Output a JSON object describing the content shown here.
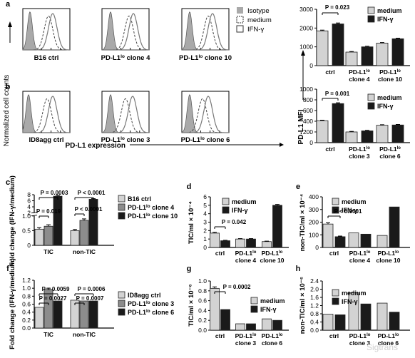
{
  "flow": {
    "y_label": "Normalized cell counts",
    "x_label": "PD-L1 expression",
    "legend": [
      "Isotype",
      "medium",
      "IFN-γ"
    ],
    "row_a_labels": [
      "B16 ctrl",
      "PD-L1lo clone 4",
      "PD-L1lo clone 10"
    ],
    "row_b_labels": [
      "ID8agg ctrl",
      "PD-L1lo clone 3",
      "PD-L1lo clone 6"
    ]
  },
  "watermark": "Sigtrans",
  "panel_letters": [
    "a",
    "b",
    "c",
    "d",
    "e",
    "f",
    "g",
    "h"
  ],
  "shared": {
    "mfi_label": "PD-L1 MFI"
  },
  "colors": {
    "medium": "#d3d3d3",
    "ifn": "#1a1a1a",
    "gray2": "#8c8c8c",
    "isotype": "#a9a9a9"
  },
  "chart_data": [
    {
      "id": "a_bar",
      "type": "bar",
      "categories": [
        "ctrl",
        "PD-L1lo clone 4",
        "PD-L1lo clone 10"
      ],
      "series": [
        {
          "name": "medium",
          "values": [
            1850,
            720,
            1200
          ]
        },
        {
          "name": "IFN-γ",
          "values": [
            2220,
            1000,
            1430
          ]
        }
      ],
      "errors": [
        [
          40,
          30,
          30
        ],
        [
          50,
          30,
          30
        ]
      ],
      "yticks": [
        0,
        1000,
        2000,
        3000
      ],
      "ylim": [
        0,
        3000
      ],
      "legend": [
        "medium",
        "IFN-γ"
      ],
      "annotations": [
        {
          "text": "P = 0.023",
          "i": 0,
          "j": 0
        }
      ]
    },
    {
      "id": "b_bar",
      "type": "bar",
      "categories": [
        "ctrl",
        "PD-L1lo clone 3",
        "PD-L1lo clone 6"
      ],
      "series": [
        {
          "name": "medium",
          "values": [
            410,
            200,
            325
          ]
        },
        {
          "name": "IFN-γ",
          "values": [
            730,
            220,
            330
          ]
        }
      ],
      "errors": [
        [
          10,
          10,
          10
        ],
        [
          15,
          10,
          10
        ]
      ],
      "yticks": [
        0,
        200,
        400,
        600,
        800,
        1000
      ],
      "ylim": [
        0,
        1000
      ],
      "legend": [
        "medium",
        "IFN-γ"
      ],
      "annotations": [
        {
          "text": "P = 0.001",
          "i": 0,
          "j": 0
        }
      ]
    },
    {
      "id": "c",
      "type": "bar",
      "ylabel": "Fold change (IFN-γ/medium)",
      "categories": [
        "TIC",
        "non-TIC"
      ],
      "series": [
        {
          "name": "B16 ctrl",
          "values": [
            0.55,
            0.5
          ]
        },
        {
          "name": "PD-L1lo clone 4",
          "values": [
            0.65,
            0.85
          ]
        },
        {
          "name": "PD-L1lo clone 10",
          "values": [
            7.5,
            6.5
          ]
        }
      ],
      "errors": [
        [
          0.05,
          0.04
        ],
        [
          0.05,
          0.05
        ],
        [
          0.3,
          0.2
        ]
      ],
      "yticks": [
        0,
        0.5,
        1.0,
        2,
        4,
        6,
        8
      ],
      "legend": [
        "B16 ctrl",
        "PD-L1lo clone 4",
        "PD-L1lo clone 10"
      ],
      "annotations": [
        {
          "text": "P = 0.0003",
          "i": 0,
          "j": 0
        },
        {
          "text": "P = 0.019",
          "i": 0,
          "j": 0
        },
        {
          "text": "P < 0.0001",
          "i": 1,
          "j": 0
        },
        {
          "text": "P < 0.0001",
          "i": 1,
          "j": 0
        }
      ]
    },
    {
      "id": "d",
      "type": "bar",
      "ylabel": "TIC/ml × 10⁻⁴",
      "categories": [
        "ctrl",
        "PD-L1lo clone 4",
        "PD-L1lo clone 10"
      ],
      "series": [
        {
          "name": "medium",
          "values": [
            1.7,
            1.0,
            0.7
          ]
        },
        {
          "name": "IFN-γ",
          "values": [
            0.8,
            1.0,
            5.0
          ]
        }
      ],
      "errors": [
        [
          0.1,
          0.05,
          0.05
        ],
        [
          0.05,
          0.05,
          0.1
        ]
      ],
      "yticks": [
        0,
        1,
        2,
        3,
        4,
        5,
        6
      ],
      "ylim": [
        0,
        6
      ],
      "legend": [
        "medium",
        "IFN-γ"
      ],
      "annotations": [
        {
          "text": "P = 0.042",
          "i": 0,
          "j": 0
        }
      ]
    },
    {
      "id": "e",
      "type": "bar",
      "ylabel": "non-TIC/ml × 10⁻⁴",
      "categories": [
        "ctrl",
        "PD-L1lo clone 4",
        "PD-L1lo clone 10"
      ],
      "series": [
        {
          "name": "medium",
          "values": [
            185,
            115,
            95
          ]
        },
        {
          "name": "IFN-γ",
          "values": [
            85,
            105,
            320
          ]
        }
      ],
      "errors": [
        [
          10,
          0,
          0
        ],
        [
          5,
          0,
          0
        ]
      ],
      "yticks": [
        0,
        100,
        200,
        300,
        400
      ],
      "ylim": [
        0,
        400
      ],
      "legend": [
        "medium",
        "IFN-γ"
      ],
      "annotations": [
        {
          "text": "P < 0.0001",
          "i": 0,
          "j": 0
        }
      ]
    },
    {
      "id": "f",
      "type": "bar",
      "ylabel": "Fold change (IFN-γ/medium)",
      "categories": [
        "TIC",
        "non-TIC"
      ],
      "series": [
        {
          "name": "ID8agg ctrl",
          "values": [
            0.52,
            0.7
          ]
        },
        {
          "name": "PD-L1lo clone 3",
          "values": [
            0.97,
            0.68
          ]
        },
        {
          "name": "PD-L1lo clone 6",
          "values": [
            0.68,
            0.68
          ]
        }
      ],
      "errors": [
        [
          0,
          0
        ],
        [
          0.03,
          0
        ],
        [
          0,
          0
        ]
      ],
      "yticks": [
        0,
        0.2,
        0.4,
        0.6,
        0.8,
        1.0,
        1.2
      ],
      "ylim": [
        0,
        1.2
      ],
      "legend": [
        "ID8agg ctrl",
        "PD-L1lo clone 3",
        "PD-L1lo clone 6"
      ],
      "annotations": [
        {
          "text": "P = 0.0059",
          "i": 0,
          "j": 0
        },
        {
          "text": "P = 0.0027",
          "i": 0,
          "j": 0
        },
        {
          "text": "P = 0.0006",
          "i": 1,
          "j": 0
        },
        {
          "text": "P = 0.0007",
          "i": 1,
          "j": 0
        }
      ]
    },
    {
      "id": "g",
      "type": "bar",
      "ylabel": "TIC/ml × 10⁻⁶",
      "categories": [
        "ctrl",
        "PD-L1lo clone 3",
        "PD-L1lo clone 6"
      ],
      "series": [
        {
          "name": "medium",
          "values": [
            0.85,
            0.13,
            0.23
          ]
        },
        {
          "name": "IFN-γ",
          "values": [
            0.42,
            0.13,
            0.2
          ]
        }
      ],
      "errors": [
        [
          0.03,
          0,
          0
        ],
        [
          0,
          0,
          0
        ]
      ],
      "yticks": [
        0,
        0.2,
        0.4,
        0.6,
        0.8,
        1.0
      ],
      "ylim": [
        0,
        1.0
      ],
      "legend": [
        "medium",
        "IFN-γ"
      ],
      "annotations": [
        {
          "text": "P = 0.0002",
          "i": 0,
          "j": 0
        }
      ]
    },
    {
      "id": "h",
      "type": "bar",
      "ylabel": "non-TIC/ml × 10⁻⁶",
      "categories": [
        "ctrl",
        "PD-L1lo clone 3",
        "PD-L1lo clone 6"
      ],
      "series": [
        {
          "name": "medium",
          "values": [
            0.78,
            1.82,
            1.32
          ]
        },
        {
          "name": "IFN-γ",
          "values": [
            0.75,
            1.28,
            0.88
          ]
        }
      ],
      "errors": [
        [
          0,
          0,
          0
        ],
        [
          0,
          0,
          0
        ]
      ],
      "yticks": [
        0,
        0.4,
        0.8,
        1.2,
        1.6,
        2.0,
        2.4
      ],
      "ylim": [
        0,
        2.4
      ],
      "legend": [
        "medium",
        "IFN-γ"
      ],
      "annotations": []
    }
  ]
}
